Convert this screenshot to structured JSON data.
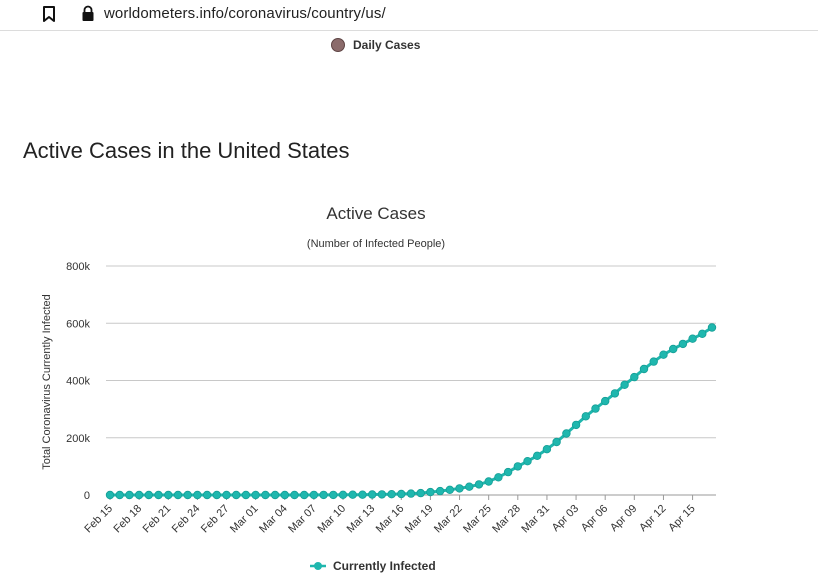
{
  "browser": {
    "url": "worldometers.info/coronavirus/country/us/",
    "icons": [
      "bookmark-icon",
      "lock-icon"
    ]
  },
  "top_legend": {
    "label": "Daily Cases",
    "color": "#8b6b6b"
  },
  "section_heading": "Active Cases in the United States",
  "chart_data": {
    "type": "line",
    "title": "Active Cases",
    "subtitle": "(Number of Infected People)",
    "xlabel": "",
    "ylabel": "Total Coronavirus Currently Infected",
    "ylim": [
      0,
      800000
    ],
    "yticks": [
      0,
      200000,
      400000,
      600000,
      800000
    ],
    "ytick_labels": [
      "0",
      "200k",
      "400k",
      "600k",
      "800k"
    ],
    "grid": true,
    "legend_position": "bottom-center",
    "x_tick_labels": [
      "Feb 15",
      "Feb 18",
      "Feb 21",
      "Feb 24",
      "Feb 27",
      "Mar 01",
      "Mar 04",
      "Mar 07",
      "Mar 10",
      "Mar 13",
      "Mar 16",
      "Mar 19",
      "Mar 22",
      "Mar 25",
      "Mar 28",
      "Mar 31",
      "Apr 03",
      "Apr 06",
      "Apr 09",
      "Apr 12",
      "Apr 15"
    ],
    "x_tick_every": 3,
    "categories": [
      "Feb 15",
      "Feb 16",
      "Feb 17",
      "Feb 18",
      "Feb 19",
      "Feb 20",
      "Feb 21",
      "Feb 22",
      "Feb 23",
      "Feb 24",
      "Feb 25",
      "Feb 26",
      "Feb 27",
      "Feb 28",
      "Feb 29",
      "Mar 01",
      "Mar 02",
      "Mar 03",
      "Mar 04",
      "Mar 05",
      "Mar 06",
      "Mar 07",
      "Mar 08",
      "Mar 09",
      "Mar 10",
      "Mar 11",
      "Mar 12",
      "Mar 13",
      "Mar 14",
      "Mar 15",
      "Mar 16",
      "Mar 17",
      "Mar 18",
      "Mar 19",
      "Mar 20",
      "Mar 21",
      "Mar 22",
      "Mar 23",
      "Mar 24",
      "Mar 25",
      "Mar 26",
      "Mar 27",
      "Mar 28",
      "Mar 29",
      "Mar 30",
      "Mar 31",
      "Apr 01",
      "Apr 02",
      "Apr 03",
      "Apr 04",
      "Apr 05",
      "Apr 06",
      "Apr 07",
      "Apr 08",
      "Apr 09",
      "Apr 10",
      "Apr 11",
      "Apr 12",
      "Apr 13",
      "Apr 14",
      "Apr 15",
      "Apr 16",
      "Apr 17"
    ],
    "series": [
      {
        "name": "Currently Infected",
        "color": "#1fb7ae",
        "values": [
          8,
          8,
          8,
          8,
          8,
          8,
          8,
          8,
          8,
          9,
          9,
          10,
          12,
          15,
          20,
          30,
          40,
          55,
          70,
          100,
          160,
          250,
          350,
          450,
          600,
          900,
          1200,
          1600,
          2100,
          2700,
          3600,
          4900,
          6700,
          10000,
          13500,
          18000,
          23000,
          29000,
          37000,
          47000,
          62000,
          80000,
          100000,
          118000,
          137000,
          160000,
          185000,
          215000,
          245000,
          275000,
          302000,
          328000,
          355000,
          385000,
          412000,
          440000,
          466000,
          490000,
          510000,
          528000,
          546000,
          563000,
          585000
        ]
      }
    ]
  }
}
